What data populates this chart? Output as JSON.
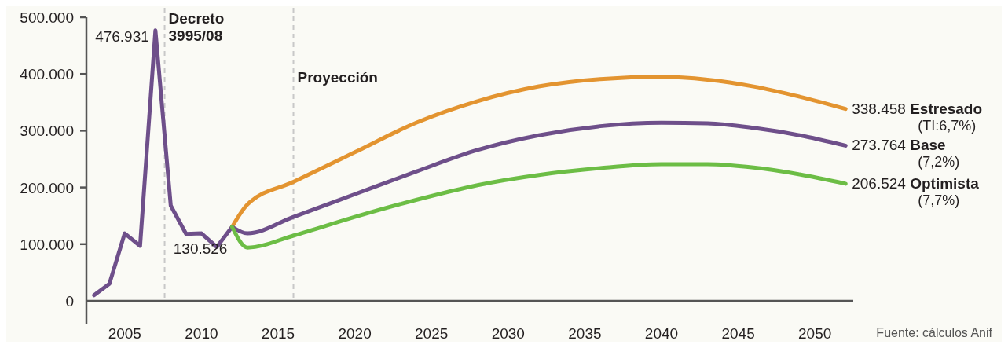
{
  "chart_data": {
    "type": "line",
    "xlim": [
      2002.5,
      2052.5
    ],
    "xticks": [
      2005,
      2010,
      2015,
      2020,
      2025,
      2030,
      2035,
      2040,
      2045,
      2050
    ],
    "ylim": [
      0,
      500000
    ],
    "yticks": [
      0,
      {
        "value": 100000,
        "label": "100.000"
      },
      {
        "value": 200000,
        "label": "200.000"
      },
      {
        "value": 300000,
        "label": "300.000"
      },
      {
        "value": 400000,
        "label": "400.000"
      },
      {
        "value": 500000,
        "label": "500.000"
      }
    ],
    "grid": false,
    "legend": false,
    "marker": "none",
    "line_style": "solid",
    "series": [
      {
        "color": "#6e4f8a",
        "x": [
          2003,
          2004,
          2005,
          2006,
          2007,
          2008,
          2009,
          2010,
          2011,
          2012
        ],
        "values": [
          10000,
          30000,
          119000,
          97000,
          476931,
          168000,
          118000,
          119000,
          95000,
          130526
        ],
        "value_labels": [
          null,
          null,
          null,
          null,
          "476.931",
          null,
          null,
          null,
          null,
          "130.526"
        ]
      },
      {
        "name": "Estresado (TI:6,7%)",
        "color": "#e39430",
        "x": [
          2012,
          2013,
          2016,
          2020,
          2024,
          2028,
          2032,
          2036,
          2040,
          2043,
          2046,
          2049,
          2052
        ],
        "values": [
          130526,
          170000,
          210000,
          262000,
          314000,
          352000,
          378000,
          391000,
          395000,
          390000,
          378000,
          360000,
          338458
        ],
        "value_labels": [
          null,
          null,
          null,
          null,
          null,
          null,
          null,
          null,
          null,
          null,
          null,
          null,
          "338.458"
        ]
      },
      {
        "name": "Base (7,2%)",
        "color": "#6e4f8a",
        "x": [
          2012,
          2013,
          2016,
          2020,
          2024,
          2028,
          2032,
          2036,
          2040,
          2043,
          2046,
          2049,
          2052
        ],
        "values": [
          130526,
          119000,
          148000,
          188000,
          228000,
          266000,
          292000,
          308000,
          314000,
          313000,
          305000,
          292000,
          273764
        ],
        "value_labels": [
          null,
          null,
          null,
          null,
          null,
          null,
          null,
          null,
          null,
          null,
          null,
          null,
          "273.764"
        ]
      },
      {
        "name": "Optimista (7,7%)",
        "color": "#6cbd45",
        "x": [
          2012,
          2013,
          2016,
          2020,
          2024,
          2028,
          2032,
          2036,
          2040,
          2043,
          2046,
          2049,
          2052
        ],
        "values": [
          130526,
          94000,
          115000,
          148000,
          178000,
          204000,
          222000,
          234000,
          241000,
          241000,
          235000,
          223000,
          206524
        ],
        "value_labels": [
          null,
          null,
          null,
          null,
          null,
          null,
          null,
          null,
          null,
          null,
          null,
          null,
          "206.524"
        ]
      }
    ],
    "ref_lines": [
      {
        "axis": "x",
        "value": 2007.6,
        "label": "Decreto 3995/08",
        "color": "#c8c8c8",
        "line_style": "dashed"
      },
      {
        "axis": "x",
        "value": 2016,
        "label": "Proyección",
        "color": "#c8c8c8",
        "line_style": "dashed"
      }
    ],
    "annotations": [
      "Fuente: cálculos Anif"
    ]
  }
}
